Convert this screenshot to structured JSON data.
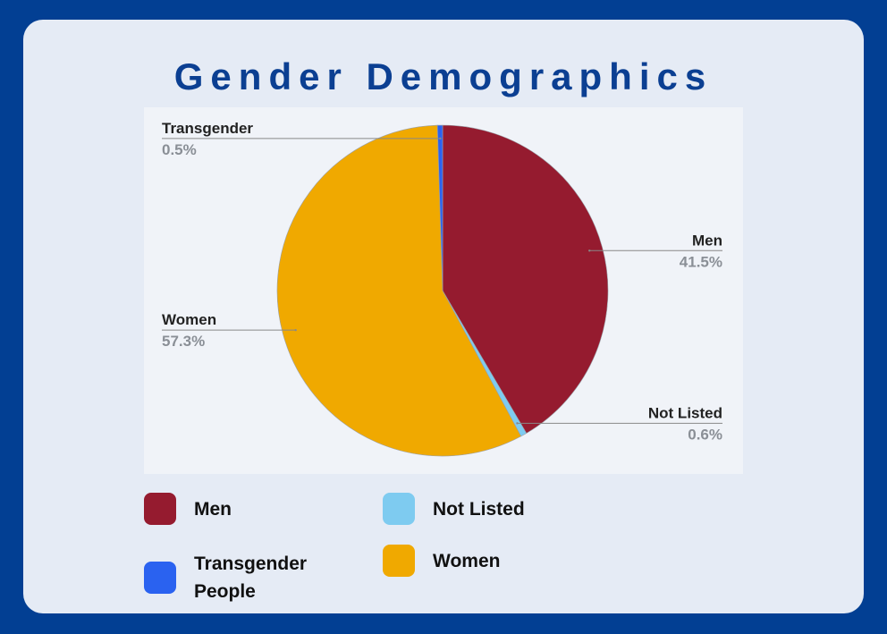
{
  "chart_data": {
    "type": "pie",
    "title": "Gender Demographics",
    "categories": [
      "Men",
      "Not Listed",
      "Women",
      "Transgender"
    ],
    "values": [
      41.5,
      0.6,
      57.3,
      0.5
    ],
    "value_labels": [
      "41.5%",
      "0.6%",
      "57.3%",
      "0.5%"
    ],
    "colors": [
      "#951b2f",
      "#7ecbf0",
      "#f0a900",
      "#2a62f0"
    ],
    "legend": [
      {
        "name": "Men",
        "color": "#951b2f"
      },
      {
        "name": "Transgender People",
        "color": "#2a62f0"
      },
      {
        "name": "Not Listed",
        "color": "#7ecbf0"
      },
      {
        "name": "Women",
        "color": "#f0a900"
      }
    ]
  }
}
